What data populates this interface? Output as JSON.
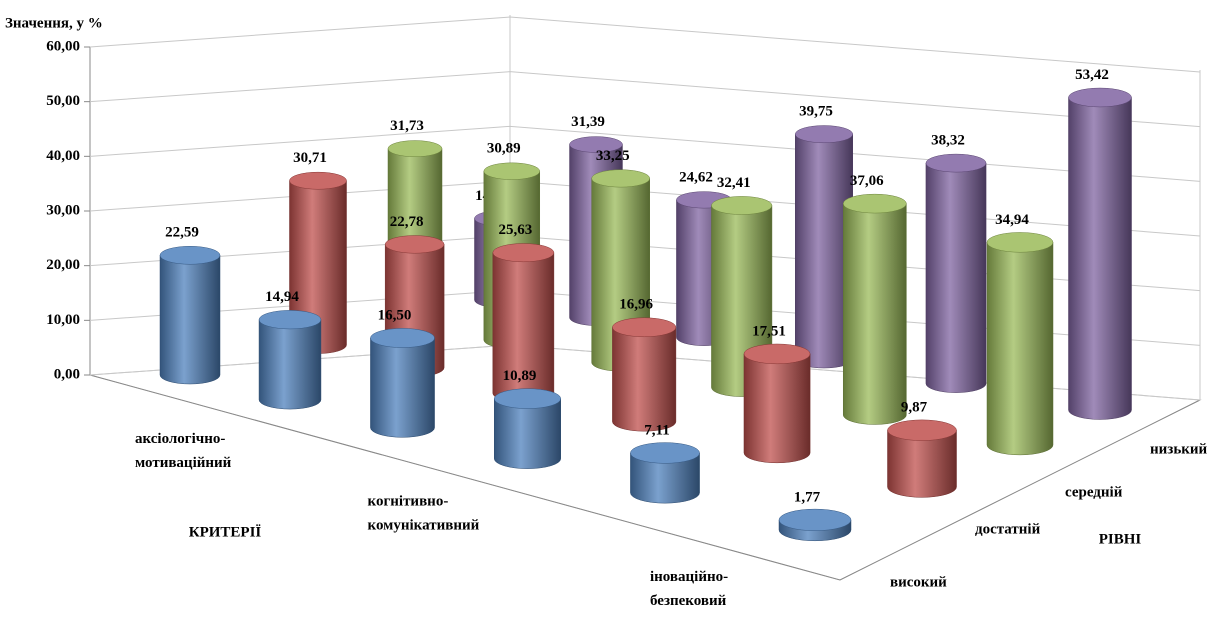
{
  "chart_data": {
    "type": "cylinder3d",
    "y_label": "Значення, у %",
    "x_label": "КРИТЕРІЇ",
    "z_label": "РІВНІ",
    "categories": [
      "аксіологічно-\nмотиваційний",
      null,
      "когнітивно-\nкомунікативний",
      null,
      "іноваційно-\nбезпековий",
      null
    ],
    "ylim": [
      0,
      60
    ],
    "yticks": [
      {
        "value": 0,
        "label": "0,00"
      },
      {
        "value": 10,
        "label": "10,00"
      },
      {
        "value": 20,
        "label": "20,00"
      },
      {
        "value": 30,
        "label": "30,00"
      },
      {
        "value": 40,
        "label": "40,00"
      },
      {
        "value": 50,
        "label": "50,00"
      },
      {
        "value": 60,
        "label": "60,00"
      }
    ],
    "series": [
      {
        "name": "високий",
        "color": "#4f81bd",
        "values": [
          22.59,
          14.94,
          16.5,
          10.89,
          7.11,
          1.77
        ],
        "value_labels": [
          "22,59",
          "14,94",
          "16,50",
          "10,89",
          "7,11",
          "1,77"
        ]
      },
      {
        "name": "достатній",
        "color": "#c0504d",
        "values": [
          30.71,
          22.78,
          25.63,
          16.96,
          17.51,
          9.87
        ],
        "value_labels": [
          "30,71",
          "22,78",
          "25,63",
          "16,96",
          "17,51",
          "9,87"
        ]
      },
      {
        "name": "середній",
        "color": "#9bbb59",
        "values": [
          31.73,
          30.89,
          33.25,
          32.41,
          37.06,
          34.94
        ],
        "value_labels": [
          "31,73",
          "30,89",
          "33,25",
          "32,41",
          "37,06",
          "34,94"
        ]
      },
      {
        "name": "низький",
        "color": "#8064a2",
        "values": [
          14.97,
          31.39,
          24.62,
          39.75,
          38.32,
          53.42
        ],
        "value_labels": [
          "14,97",
          "31,39",
          "24,62",
          "39,75",
          "38,32",
          "53,42"
        ]
      }
    ]
  }
}
